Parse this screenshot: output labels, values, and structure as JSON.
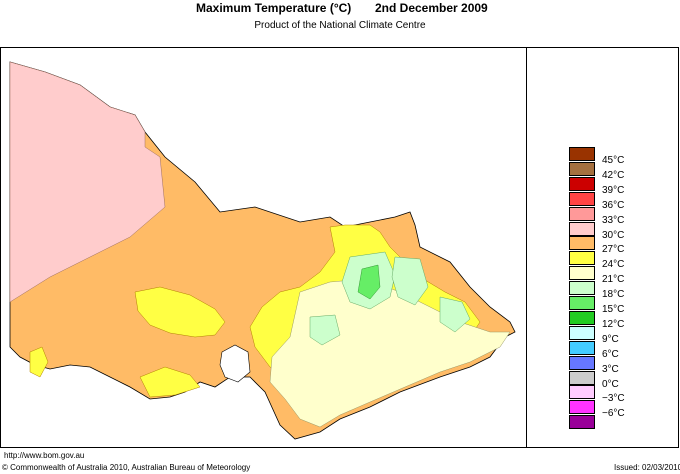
{
  "header": {
    "title": "Maximum Temperature (°C)",
    "date": "2nd December 2009",
    "subtitle": "Product of the National Climate Centre"
  },
  "legend": [
    {
      "label": "45",
      "color": "#993300"
    },
    {
      "label": "42",
      "color": "#a5703f"
    },
    {
      "label": "39",
      "color": "#cc0000"
    },
    {
      "label": "36",
      "color": "#ff4444"
    },
    {
      "label": "33",
      "color": "#ff9999"
    },
    {
      "label": "30",
      "color": "#ffcccc"
    },
    {
      "label": "27",
      "color": "#ffbb66"
    },
    {
      "label": "24",
      "color": "#ffff44"
    },
    {
      "label": "21",
      "color": "#ffffcc"
    },
    {
      "label": "18",
      "color": "#ccffcc"
    },
    {
      "label": "15",
      "color": "#66ee66"
    },
    {
      "label": "12",
      "color": "#22cc22"
    },
    {
      "label": "9",
      "color": "#ccffff"
    },
    {
      "label": "6",
      "color": "#44ccff"
    },
    {
      "label": "3",
      "color": "#6677ff"
    },
    {
      "label": "0",
      "color": "#cccccc"
    },
    {
      "label": "−3",
      "color": "#ffccff"
    },
    {
      "label": "−6",
      "color": "#ff33ff"
    },
    {
      "label": "",
      "color": "#990099"
    }
  ],
  "legend_unit": "°C",
  "footer": {
    "url": "http://www.bom.gov.au",
    "copyright": "© Commonwealth of Australia 2010, Australian Bureau of Meteorology",
    "issued": "Issued: 02/03/2010"
  }
}
